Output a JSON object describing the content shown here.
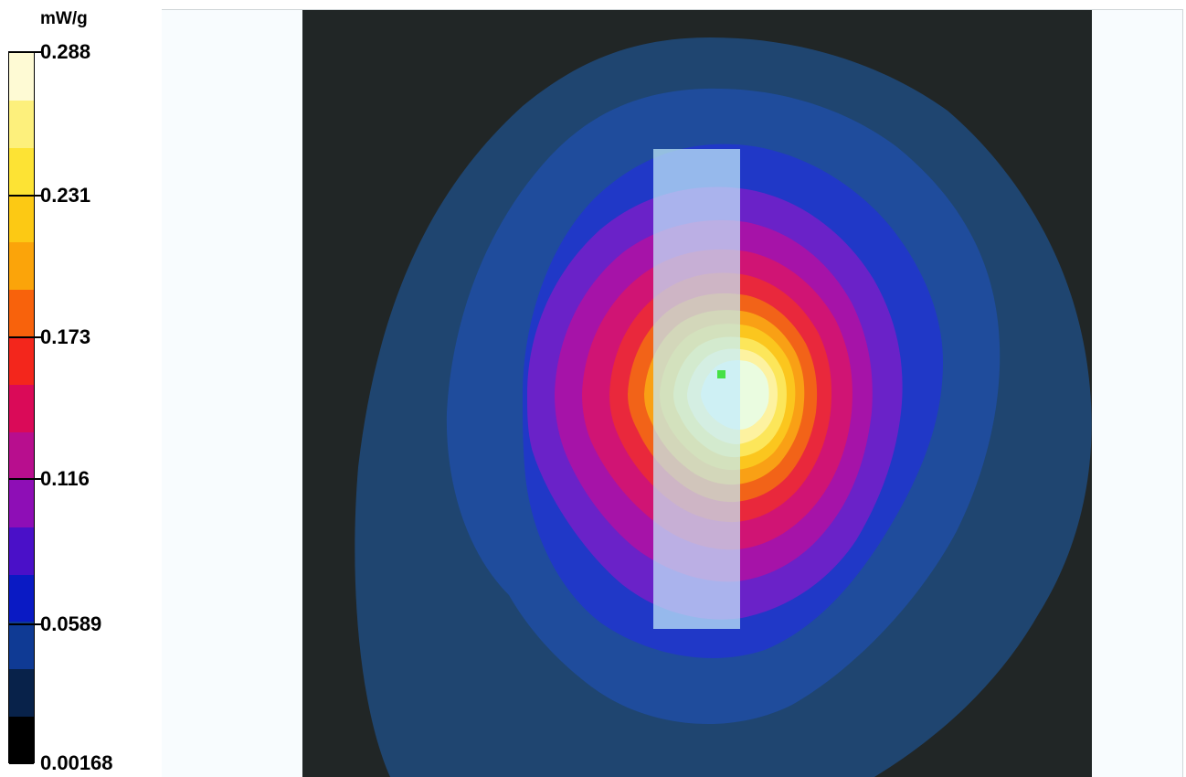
{
  "chart_data": {
    "type": "heatmap",
    "unit": "mW/g",
    "colorbar_ticks": [
      "0.288",
      "0.231",
      "0.173",
      "0.116",
      "0.0589",
      "0.00168"
    ],
    "colorbar_min": 0.00168,
    "colorbar_max": 0.288,
    "colorbar_levels": [
      "#000000",
      "#08224a",
      "#0f3a94",
      "#0a1ac4",
      "#4a10c8",
      "#8e0eb6",
      "#b80e8e",
      "#da0a58",
      "#f3261c",
      "#f8620c",
      "#fba40a",
      "#fcc914",
      "#fde334",
      "#fdf07c",
      "#fefad4"
    ],
    "peak_marker_color": "#46e146"
  }
}
